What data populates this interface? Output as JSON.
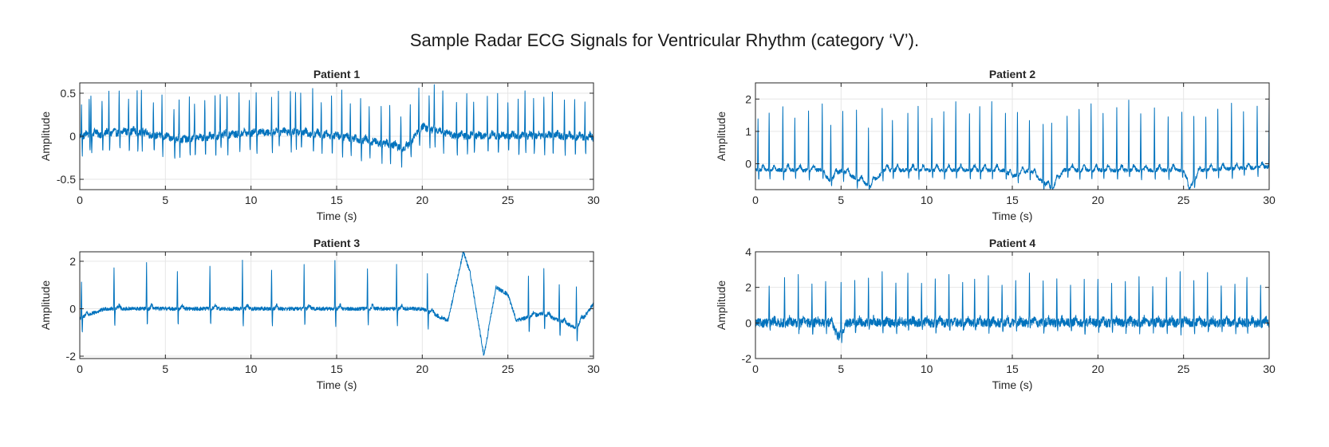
{
  "figure": {
    "title": "Sample Radar ECG Signals for Ventricular Rhythm (category ‘V’)."
  },
  "colors": {
    "line": "#0072BD",
    "grid": "#e6e6e6",
    "axis": "#262626"
  },
  "chart_data": [
    {
      "type": "line",
      "title": "Patient 1",
      "xlabel": "Time (s)",
      "ylabel": "Amplitude",
      "xlim": [
        0,
        30
      ],
      "ylim": [
        -0.62,
        0.62
      ],
      "xticks": [
        "0",
        "5",
        "10",
        "15",
        "20",
        "25",
        "30"
      ],
      "yticks": [
        "-0.5",
        "0",
        "0.5"
      ],
      "ytick_values": [
        -0.5,
        0,
        0.5
      ],
      "grid": true,
      "beats": [
        0.1,
        0.55,
        0.65,
        1.3,
        1.7,
        2.3,
        2.85,
        3.35,
        3.6,
        4.3,
        4.8,
        5.5,
        5.8,
        6.4,
        6.7,
        7.3,
        7.9,
        8.2,
        8.6,
        9.3,
        9.9,
        10.3,
        11.2,
        11.6,
        12.3,
        12.6,
        12.9,
        13.6,
        14.1,
        14.7,
        15.3,
        15.8,
        16.4,
        16.9,
        17.6,
        18.1,
        18.75,
        19.3,
        19.8,
        20.4,
        20.7,
        21.2,
        22.0,
        22.6,
        23.0,
        23.8,
        24.4,
        25.0,
        25.6,
        26.0,
        26.5,
        27.1,
        27.6,
        28.3,
        28.9,
        29.5
      ],
      "peak_max": 0.6,
      "trough_min": -0.62,
      "baseline": [
        [
          0,
          0
        ],
        [
          3,
          0.05
        ],
        [
          6,
          -0.05
        ],
        [
          9,
          0.02
        ],
        [
          12,
          0.05
        ],
        [
          15,
          0
        ],
        [
          18,
          -0.1
        ],
        [
          19,
          -0.15
        ],
        [
          20,
          0.1
        ],
        [
          22,
          0
        ],
        [
          25,
          0
        ],
        [
          28,
          0
        ],
        [
          30,
          -0.02
        ]
      ],
      "noise": 0.04
    },
    {
      "type": "line",
      "title": "Patient 2",
      "xlabel": "Time (s)",
      "ylabel": "Amplitude",
      "xlim": [
        0,
        30
      ],
      "ylim": [
        -0.8,
        2.5
      ],
      "xticks": [
        "0",
        "5",
        "10",
        "15",
        "20",
        "25",
        "30"
      ],
      "yticks": [
        "0",
        "1",
        "2"
      ],
      "ytick_values": [
        0,
        1,
        2
      ],
      "grid": true,
      "beats": [
        0.15,
        0.8,
        1.6,
        2.3,
        3.1,
        3.9,
        4.4,
        5.1,
        5.9,
        6.6,
        7.4,
        8.0,
        8.9,
        9.5,
        10.3,
        11.0,
        11.7,
        12.5,
        13.1,
        13.8,
        14.6,
        15.3,
        16.0,
        16.8,
        17.3,
        18.2,
        18.9,
        19.6,
        20.3,
        21.1,
        21.8,
        22.5,
        23.3,
        24.1,
        24.9,
        25.6,
        26.3,
        27.0,
        27.8,
        28.5,
        29.3,
        30.0
      ],
      "peak_max": 2.5,
      "trough_min": -0.8,
      "baseline": [
        [
          0,
          -0.2
        ],
        [
          4,
          -0.2
        ],
        [
          4.2,
          -0.6
        ],
        [
          5,
          -0.2
        ],
        [
          6.7,
          -0.7
        ],
        [
          7.5,
          -0.2
        ],
        [
          14.5,
          -0.2
        ],
        [
          15,
          -0.4
        ],
        [
          16,
          -0.2
        ],
        [
          17.3,
          -0.8
        ],
        [
          18,
          -0.2
        ],
        [
          25,
          -0.2
        ],
        [
          25.3,
          -0.8
        ],
        [
          26,
          -0.2
        ],
        [
          30,
          -0.1
        ]
      ],
      "noise": 0.06
    },
    {
      "type": "line",
      "title": "Patient 3",
      "xlabel": "Time (s)",
      "ylabel": "Amplitude",
      "xlim": [
        0,
        30
      ],
      "ylim": [
        -2.1,
        2.4
      ],
      "xticks": [
        "0",
        "5",
        "10",
        "15",
        "20",
        "25",
        "30"
      ],
      "yticks": [
        "-2",
        "0",
        "2"
      ],
      "ytick_values": [
        -2,
        0,
        2
      ],
      "grid": true,
      "beats": [
        0.1,
        2.0,
        3.9,
        5.7,
        7.6,
        9.5,
        11.2,
        13.1,
        14.9,
        16.8,
        18.5,
        20.3,
        26.2,
        27.1,
        28.0,
        29.0
      ],
      "peak_max": 2.4,
      "trough_min": -2.1,
      "baseline": [
        [
          0,
          -0.4
        ],
        [
          1.5,
          0
        ],
        [
          20,
          0
        ],
        [
          21.5,
          -0.5
        ],
        [
          22.4,
          2.4
        ],
        [
          22.8,
          1.5
        ],
        [
          23.6,
          -2.0
        ],
        [
          24.3,
          0.9
        ],
        [
          25,
          0.6
        ],
        [
          25.5,
          -0.5
        ],
        [
          27,
          -0.2
        ],
        [
          29,
          -0.8
        ],
        [
          30,
          0.2
        ]
      ],
      "noise": 0.08
    },
    {
      "type": "line",
      "title": "Patient 4",
      "xlabel": "Time (s)",
      "ylabel": "Amplitude",
      "xlim": [
        0,
        30
      ],
      "ylim": [
        -2,
        4
      ],
      "xticks": [
        "0",
        "5",
        "10",
        "15",
        "20",
        "25",
        "30"
      ],
      "yticks": [
        "-2",
        "0",
        "2",
        "4"
      ],
      "ytick_values": [
        -2,
        0,
        2,
        4
      ],
      "grid": true,
      "beats": [
        0.8,
        1.7,
        2.5,
        3.3,
        4.1,
        5.0,
        5.8,
        6.6,
        7.4,
        8.2,
        8.9,
        9.7,
        10.5,
        11.3,
        12.1,
        12.8,
        13.6,
        14.4,
        15.2,
        16.0,
        16.8,
        17.6,
        18.4,
        19.2,
        20.0,
        20.8,
        21.6,
        22.4,
        23.2,
        24.0,
        24.8,
        25.6,
        26.4,
        27.2,
        28.0,
        28.7,
        29.5
      ],
      "peak_max": 3.3,
      "trough_min": -1.4,
      "baseline": [
        [
          0,
          0
        ],
        [
          4.5,
          0
        ],
        [
          4.8,
          -0.8
        ],
        [
          5.5,
          0
        ],
        [
          30,
          0
        ]
      ],
      "noise": 0.25
    }
  ]
}
